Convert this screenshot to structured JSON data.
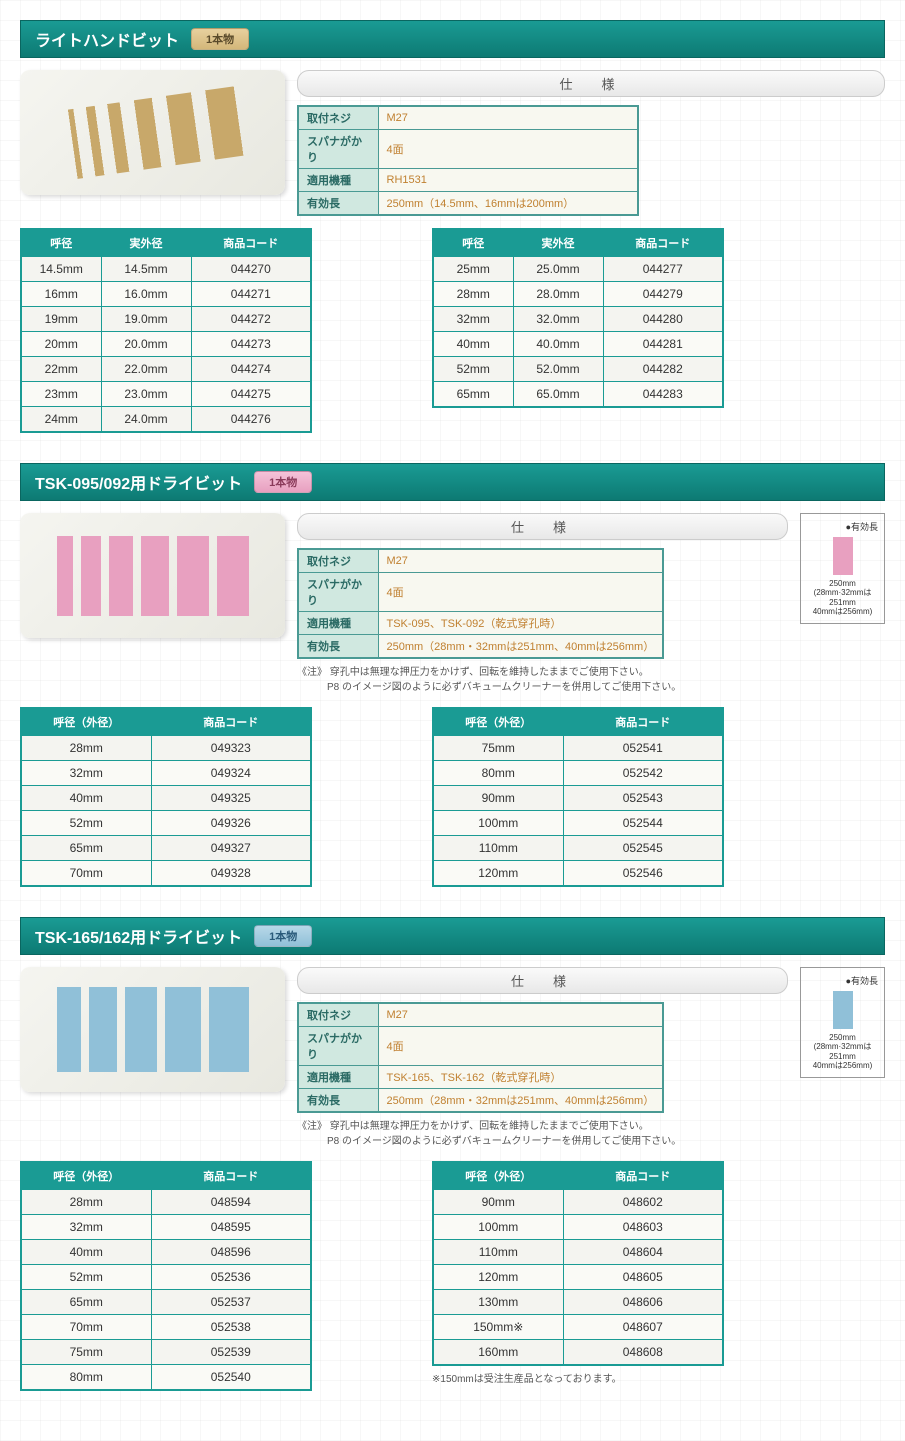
{
  "colors": {
    "teal": "#1a9b94",
    "teal_dark": "#0d7a73",
    "spec_label_bg": "#d0e8e0",
    "spec_value_color": "#c08030"
  },
  "common": {
    "spec_header": "仕　様",
    "badge_text": "1本物"
  },
  "sections": [
    {
      "title": "ライトハンドビット",
      "badge_class": "badge-tan",
      "img_class": "bits-tan",
      "spec": [
        {
          "label": "取付ネジ",
          "value": "M27"
        },
        {
          "label": "スパナがかり",
          "value": "4面"
        },
        {
          "label": "適用機種",
          "value": "RH1531"
        },
        {
          "label": "有効長",
          "value": "250mm（14.5mm、16mmは200mm）"
        }
      ],
      "note": "",
      "diagram": null,
      "table_headers_3": [
        "呼径",
        "実外径",
        "商品コード"
      ],
      "left_rows_3": [
        [
          "14.5mm",
          "14.5mm",
          "044270"
        ],
        [
          "16mm",
          "16.0mm",
          "044271"
        ],
        [
          "19mm",
          "19.0mm",
          "044272"
        ],
        [
          "20mm",
          "20.0mm",
          "044273"
        ],
        [
          "22mm",
          "22.0mm",
          "044274"
        ],
        [
          "23mm",
          "23.0mm",
          "044275"
        ],
        [
          "24mm",
          "24.0mm",
          "044276"
        ]
      ],
      "right_rows_3": [
        [
          "25mm",
          "25.0mm",
          "044277"
        ],
        [
          "28mm",
          "28.0mm",
          "044279"
        ],
        [
          "32mm",
          "32.0mm",
          "044280"
        ],
        [
          "40mm",
          "40.0mm",
          "044281"
        ],
        [
          "52mm",
          "52.0mm",
          "044282"
        ],
        [
          "65mm",
          "65.0mm",
          "044283"
        ]
      ],
      "footnote": "",
      "col_widths_3": [
        80,
        90,
        120
      ]
    },
    {
      "title": "TSK-095/092用ドライビット",
      "badge_class": "badge-pink",
      "img_class": "bits-pink",
      "spec": [
        {
          "label": "取付ネジ",
          "value": "M27"
        },
        {
          "label": "スパナがかり",
          "value": "4面"
        },
        {
          "label": "適用機種",
          "value": "TSK-095、TSK-092（乾式穿孔時）"
        },
        {
          "label": "有効長",
          "value": "250mm（28mm・32mmは251mm、40mmは256mm）"
        }
      ],
      "note": "《注》 穿孔中は無理な押圧力をかけず、回転を維持したままでご使用下さい。\n　　　P8 のイメージ図のように必ずバキュームクリーナーを併用してご使用下さい。",
      "diagram": {
        "title": "●有効長",
        "shape_class": "dia-pink",
        "text": "250mm\n(28mm·32mmは\n251mm\n40mmは256mm)"
      },
      "table_headers_2": [
        "呼径（外径）",
        "商品コード"
      ],
      "left_rows_2": [
        [
          "28mm",
          "049323"
        ],
        [
          "32mm",
          "049324"
        ],
        [
          "40mm",
          "049325"
        ],
        [
          "52mm",
          "049326"
        ],
        [
          "65mm",
          "049327"
        ],
        [
          "70mm",
          "049328"
        ]
      ],
      "right_rows_2": [
        [
          "75mm",
          "052541"
        ],
        [
          "80mm",
          "052542"
        ],
        [
          "90mm",
          "052543"
        ],
        [
          "100mm",
          "052544"
        ],
        [
          "110mm",
          "052545"
        ],
        [
          "120mm",
          "052546"
        ]
      ],
      "footnote": "",
      "col_widths_2": [
        130,
        160
      ]
    },
    {
      "title": "TSK-165/162用ドライビット",
      "badge_class": "badge-blue",
      "img_class": "bits-blue",
      "spec": [
        {
          "label": "取付ネジ",
          "value": "M27"
        },
        {
          "label": "スパナがかり",
          "value": "4面"
        },
        {
          "label": "適用機種",
          "value": "TSK-165、TSK-162（乾式穿孔時）"
        },
        {
          "label": "有効長",
          "value": "250mm（28mm・32mmは251mm、40mmは256mm）"
        }
      ],
      "note": "《注》 穿孔中は無理な押圧力をかけず、回転を維持したままでご使用下さい。\n　　　P8 のイメージ図のように必ずバキュームクリーナーを併用してご使用下さい。",
      "diagram": {
        "title": "●有効長",
        "shape_class": "dia-blue",
        "text": "250mm\n(28mm·32mmは\n251mm\n40mmは256mm)"
      },
      "table_headers_2": [
        "呼径（外径）",
        "商品コード"
      ],
      "left_rows_2": [
        [
          "28mm",
          "048594"
        ],
        [
          "32mm",
          "048595"
        ],
        [
          "40mm",
          "048596"
        ],
        [
          "52mm",
          "052536"
        ],
        [
          "65mm",
          "052537"
        ],
        [
          "70mm",
          "052538"
        ],
        [
          "75mm",
          "052539"
        ],
        [
          "80mm",
          "052540"
        ]
      ],
      "right_rows_2": [
        [
          "90mm",
          "048602"
        ],
        [
          "100mm",
          "048603"
        ],
        [
          "110mm",
          "048604"
        ],
        [
          "120mm",
          "048605"
        ],
        [
          "130mm",
          "048606"
        ],
        [
          "150mm※",
          "048607"
        ],
        [
          "160mm",
          "048608"
        ]
      ],
      "footnote": "※150mmは受注生産品となっております。",
      "col_widths_2": [
        130,
        160
      ]
    }
  ]
}
